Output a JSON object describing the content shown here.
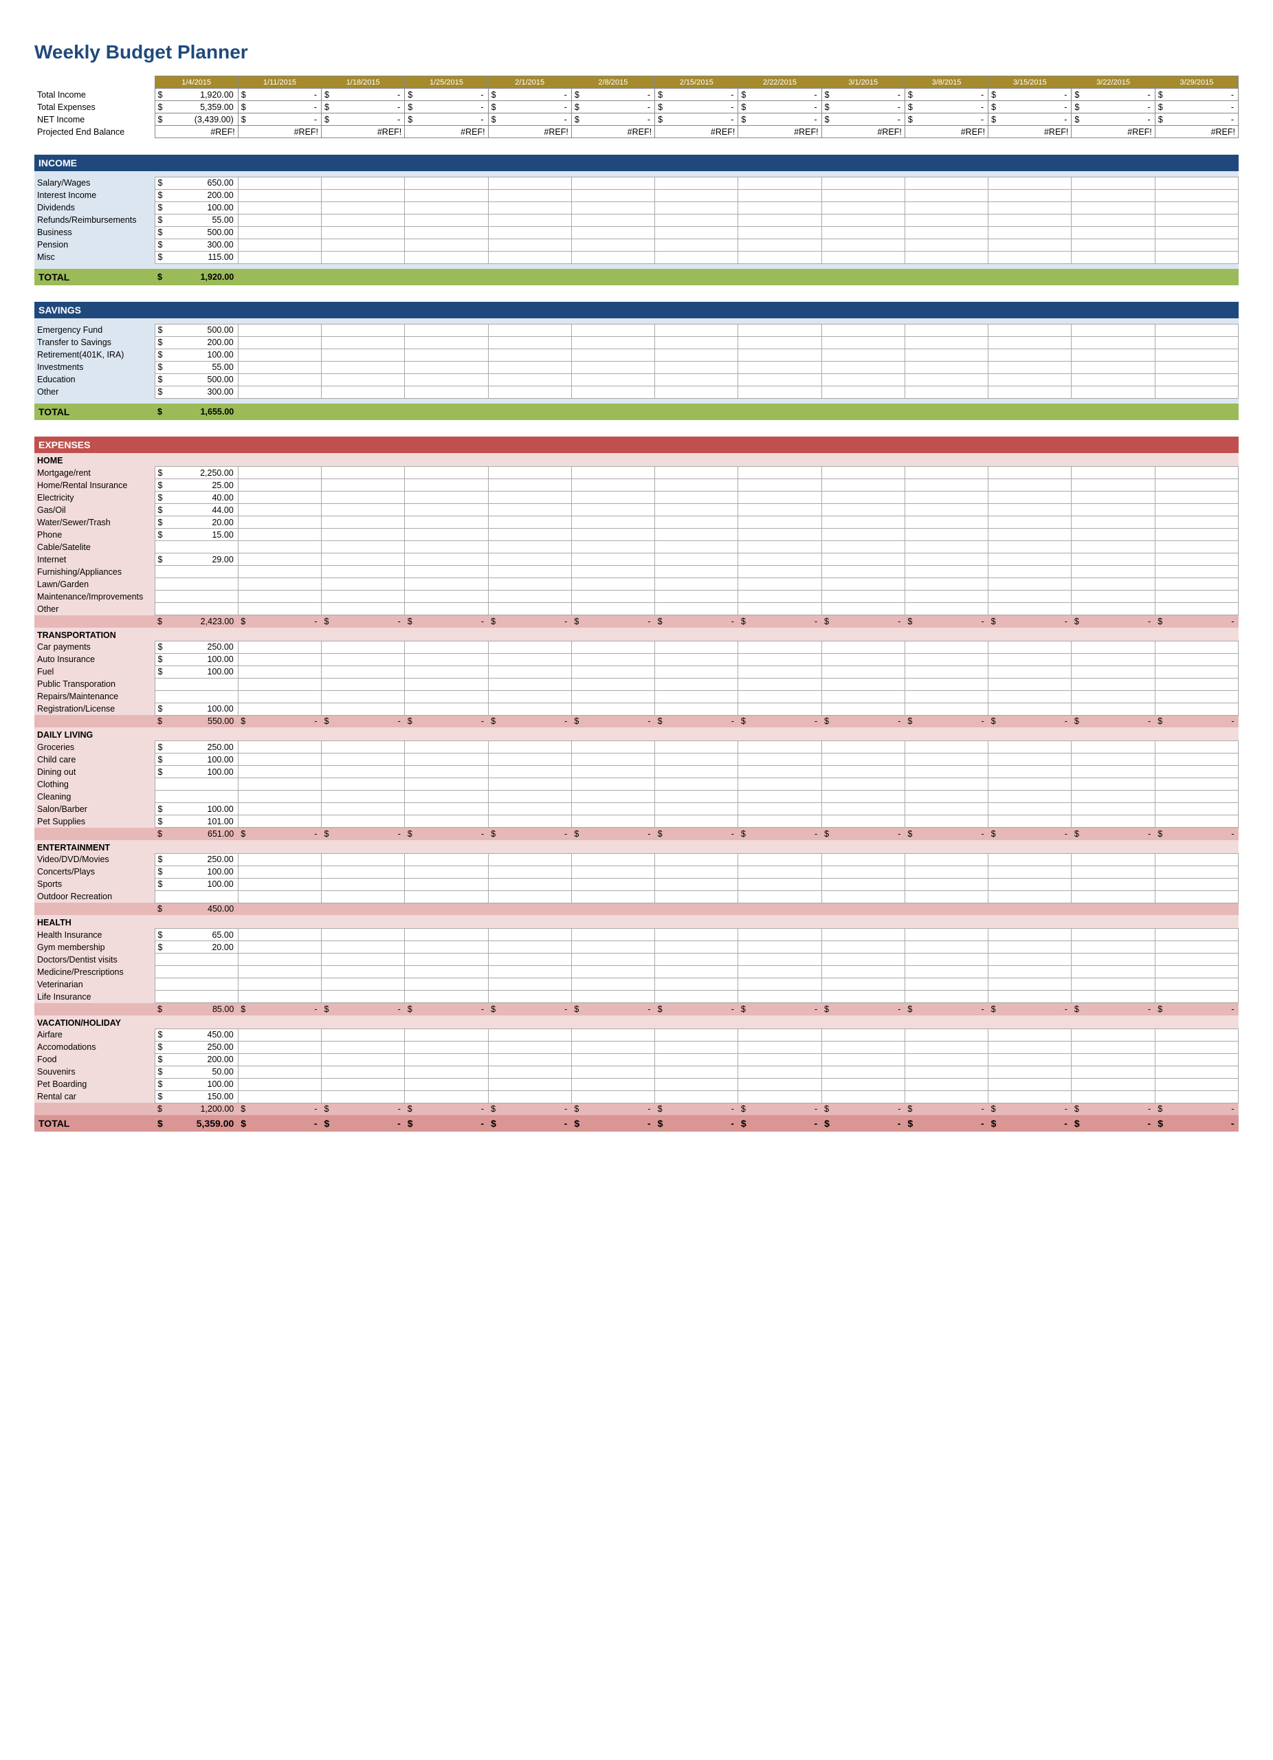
{
  "title": "Weekly Budget Planner",
  "colors": {
    "title": "#1f497d",
    "header_blue": "#1f497d",
    "header_red": "#c0504d",
    "body_blue": "#dce6f1",
    "body_pink": "#f2dcdb",
    "subtotal_green": "#9bbb59",
    "subtotal_pink": "#e6b8b7",
    "grand_pink": "#da9694",
    "date_bg": "#a58b2c"
  },
  "dates": [
    "1/4/2015",
    "1/11/2015",
    "1/18/2015",
    "1/25/2015",
    "2/1/2015",
    "2/8/2015",
    "2/15/2015",
    "2/22/2015",
    "3/1/2015",
    "3/8/2015",
    "3/15/2015",
    "3/22/2015",
    "3/29/2015"
  ],
  "summary": [
    {
      "label": "Total Income",
      "first": "1,920.00"
    },
    {
      "label": "Total Expenses",
      "first": "5,359.00"
    },
    {
      "label": "NET Income",
      "first": "(3,439.00)"
    },
    {
      "label": "Projected End Balance",
      "ref": true
    }
  ],
  "income": {
    "header": "INCOME",
    "rows": [
      {
        "label": "Salary/Wages",
        "val": "650.00"
      },
      {
        "label": "Interest Income",
        "val": "200.00"
      },
      {
        "label": "Dividends",
        "val": "100.00"
      },
      {
        "label": "Refunds/Reimbursements",
        "val": "55.00"
      },
      {
        "label": "Business",
        "val": "500.00"
      },
      {
        "label": "Pension",
        "val": "300.00"
      },
      {
        "label": "Misc",
        "val": "115.00"
      }
    ],
    "total_label": "TOTAL",
    "total": "1,920.00"
  },
  "savings": {
    "header": "SAVINGS",
    "rows": [
      {
        "label": "Emergency Fund",
        "val": "500.00"
      },
      {
        "label": "Transfer to Savings",
        "val": "200.00"
      },
      {
        "label": "Retirement(401K, IRA)",
        "val": "100.00"
      },
      {
        "label": "Investments",
        "val": "55.00"
      },
      {
        "label": "Education",
        "val": "500.00"
      },
      {
        "label": "Other",
        "val": "300.00"
      }
    ],
    "total_label": "TOTAL",
    "total": "1,655.00"
  },
  "expenses": {
    "header": "EXPENSES",
    "categories": [
      {
        "name": "HOME",
        "rows": [
          {
            "label": "Mortgage/rent",
            "val": "2,250.00"
          },
          {
            "label": "Home/Rental Insurance",
            "val": "25.00"
          },
          {
            "label": "Electricity",
            "val": "40.00"
          },
          {
            "label": "Gas/Oil",
            "val": "44.00"
          },
          {
            "label": "Water/Sewer/Trash",
            "val": "20.00"
          },
          {
            "label": "Phone",
            "val": "15.00"
          },
          {
            "label": "Cable/Satelite",
            "val": ""
          },
          {
            "label": "Internet",
            "val": "29.00"
          },
          {
            "label": "Furnishing/Appliances",
            "val": ""
          },
          {
            "label": "Lawn/Garden",
            "val": ""
          },
          {
            "label": "Maintenance/Improvements",
            "val": ""
          },
          {
            "label": "Other",
            "val": ""
          }
        ],
        "subtotal": "2,423.00",
        "dash_rest": true
      },
      {
        "name": "TRANSPORTATION",
        "rows": [
          {
            "label": "Car payments",
            "val": "250.00"
          },
          {
            "label": "Auto Insurance",
            "val": "100.00"
          },
          {
            "label": "Fuel",
            "val": "100.00"
          },
          {
            "label": "Public Transporation",
            "val": ""
          },
          {
            "label": "Repairs/Maintenance",
            "val": ""
          },
          {
            "label": "Registration/License",
            "val": "100.00"
          }
        ],
        "subtotal": "550.00",
        "dash_rest": true
      },
      {
        "name": "DAILY LIVING",
        "rows": [
          {
            "label": "Groceries",
            "val": "250.00"
          },
          {
            "label": "Child care",
            "val": "100.00"
          },
          {
            "label": "Dining out",
            "val": "100.00"
          },
          {
            "label": "Clothing",
            "val": ""
          },
          {
            "label": "Cleaning",
            "val": ""
          },
          {
            "label": "Salon/Barber",
            "val": "100.00"
          },
          {
            "label": "Pet Supplies",
            "val": "101.00"
          }
        ],
        "subtotal": "651.00",
        "dash_rest": true
      },
      {
        "name": "ENTERTAINMENT",
        "rows": [
          {
            "label": "Video/DVD/Movies",
            "val": "250.00"
          },
          {
            "label": "Concerts/Plays",
            "val": "100.00"
          },
          {
            "label": "Sports",
            "val": "100.00"
          },
          {
            "label": "Outdoor Recreation",
            "val": ""
          }
        ],
        "subtotal": "450.00",
        "dash_rest": false
      },
      {
        "name": "HEALTH",
        "rows": [
          {
            "label": "Health Insurance",
            "val": "65.00"
          },
          {
            "label": "Gym membership",
            "val": "20.00"
          },
          {
            "label": "Doctors/Dentist visits",
            "val": ""
          },
          {
            "label": "Medicine/Prescriptions",
            "val": ""
          },
          {
            "label": "Veterinarian",
            "val": ""
          },
          {
            "label": "Life Insurance",
            "val": ""
          }
        ],
        "subtotal": "85.00",
        "dash_rest": true
      },
      {
        "name": "VACATION/HOLIDAY",
        "rows": [
          {
            "label": "Airfare",
            "val": "450.00"
          },
          {
            "label": "Accomodations",
            "val": "250.00"
          },
          {
            "label": "Food",
            "val": "200.00"
          },
          {
            "label": "Souvenirs",
            "val": "50.00"
          },
          {
            "label": "Pet Boarding",
            "val": "100.00"
          },
          {
            "label": "Rental car",
            "val": "150.00"
          }
        ],
        "subtotal": "1,200.00",
        "dash_rest": true
      }
    ],
    "grand_label": "TOTAL",
    "grand_total": "5,359.00"
  }
}
